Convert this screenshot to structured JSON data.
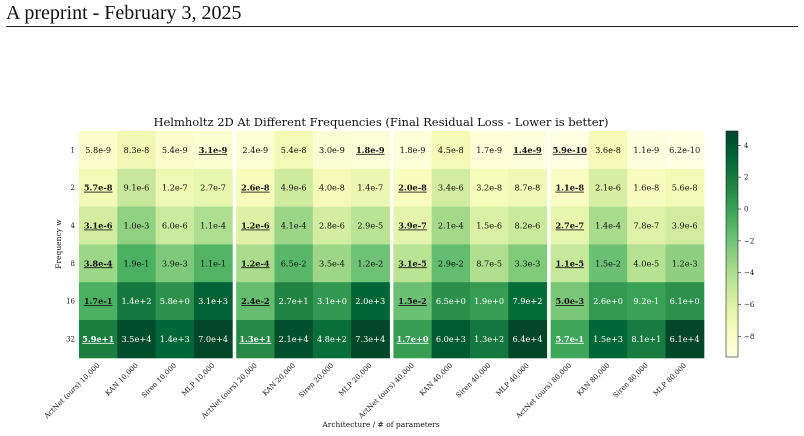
{
  "header": {
    "text": "A preprint - February 3, 2025"
  },
  "chart_data": {
    "type": "heatmap",
    "title": "Helmholtz 2D At Different Frequencies (Final Residual Loss - Lower is better)",
    "xlabel": "Architecture / # of parameters",
    "ylabel": "Frequency w",
    "rows": [
      "1",
      "2",
      "4",
      "8",
      "16",
      "32"
    ],
    "columns": [
      "ActNet (ours) 10,000",
      "KAN 10,000",
      "Siren 10,000",
      "MLP 10,000",
      "ActNet (ours) 20,000",
      "KAN 20,000",
      "Siren 20,000",
      "MLP 20,000",
      "ActNet (ours) 40,000",
      "KAN 40,000",
      "Siren 40,000",
      "MLP 40,000",
      "ActNet (ours) 80,000",
      "KAN 80,000",
      "Siren 80,000",
      "MLP 80,000"
    ],
    "cells": [
      [
        "5.8e-9",
        "8.3e-8",
        "5.4e-9",
        "3.1e-9",
        "2.4e-9",
        "5.4e-8",
        "3.0e-9",
        "1.8e-9",
        "1.8e-9",
        "4.5e-8",
        "1.7e-9",
        "1.4e-9",
        "5.9e-10",
        "3.6e-8",
        "1.1e-9",
        "6.2e-10"
      ],
      [
        "5.7e-8",
        "9.1e-6",
        "1.2e-7",
        "2.7e-7",
        "2.6e-8",
        "4.9e-6",
        "4.0e-8",
        "1.4e-7",
        "2.0e-8",
        "3.4e-6",
        "3.2e-8",
        "8.7e-8",
        "1.1e-8",
        "2.1e-6",
        "1.6e-8",
        "5.6e-8"
      ],
      [
        "3.1e-6",
        "1.0e-3",
        "6.0e-6",
        "1.1e-4",
        "1.2e-6",
        "4.1e-4",
        "2.8e-6",
        "2.9e-5",
        "3.9e-7",
        "2.1e-4",
        "1.5e-6",
        "8.2e-6",
        "2.7e-7",
        "1.4e-4",
        "7.8e-7",
        "3.9e-6"
      ],
      [
        "3.8e-4",
        "1.9e-1",
        "3.9e-3",
        "1.1e-1",
        "1.2e-4",
        "6.5e-2",
        "3.5e-4",
        "1.2e-2",
        "3.1e-5",
        "2.9e-2",
        "8.7e-5",
        "3.3e-3",
        "1.1e-5",
        "1.5e-2",
        "4.0e-5",
        "1.2e-3"
      ],
      [
        "1.7e-1",
        "1.4e+2",
        "5.8e+0",
        "3.1e+3",
        "2.4e-2",
        "2.7e+1",
        "3.1e+0",
        "2.0e+3",
        "1.5e-2",
        "6.5e+0",
        "1.9e+0",
        "7.9e+2",
        "5.0e-3",
        "2.6e+0",
        "9.2e-1",
        "6.1e+0"
      ],
      [
        "5.9e+1",
        "3.5e+4",
        "1.4e+3",
        "7.0e+4",
        "1.3e+1",
        "2.1e+4",
        "4.8e+2",
        "7.3e+4",
        "1.7e+0",
        "6.0e+3",
        "1.3e+2",
        "6.4e+4",
        "5.7e-1",
        "1.5e+3",
        "8.1e+1",
        "6.1e+4"
      ]
    ],
    "bold_cells": [
      [
        0,
        3
      ],
      [
        0,
        7
      ],
      [
        0,
        11
      ],
      [
        0,
        12
      ],
      [
        1,
        0
      ],
      [
        1,
        4
      ],
      [
        1,
        8
      ],
      [
        1,
        12
      ],
      [
        2,
        0
      ],
      [
        2,
        4
      ],
      [
        2,
        8
      ],
      [
        2,
        12
      ],
      [
        3,
        0
      ],
      [
        3,
        4
      ],
      [
        3,
        8
      ],
      [
        3,
        12
      ],
      [
        4,
        0
      ],
      [
        4,
        4
      ],
      [
        4,
        8
      ],
      [
        4,
        12
      ],
      [
        5,
        0
      ],
      [
        5,
        4
      ],
      [
        5,
        8
      ],
      [
        5,
        12
      ]
    ],
    "group_size": 4,
    "colorscale": "YlGn",
    "colorbar": {
      "min": -9.3,
      "max": 4.9,
      "ticks": [
        "4",
        "2",
        "0",
        "−2",
        "−4",
        "−6",
        "−8"
      ]
    }
  }
}
